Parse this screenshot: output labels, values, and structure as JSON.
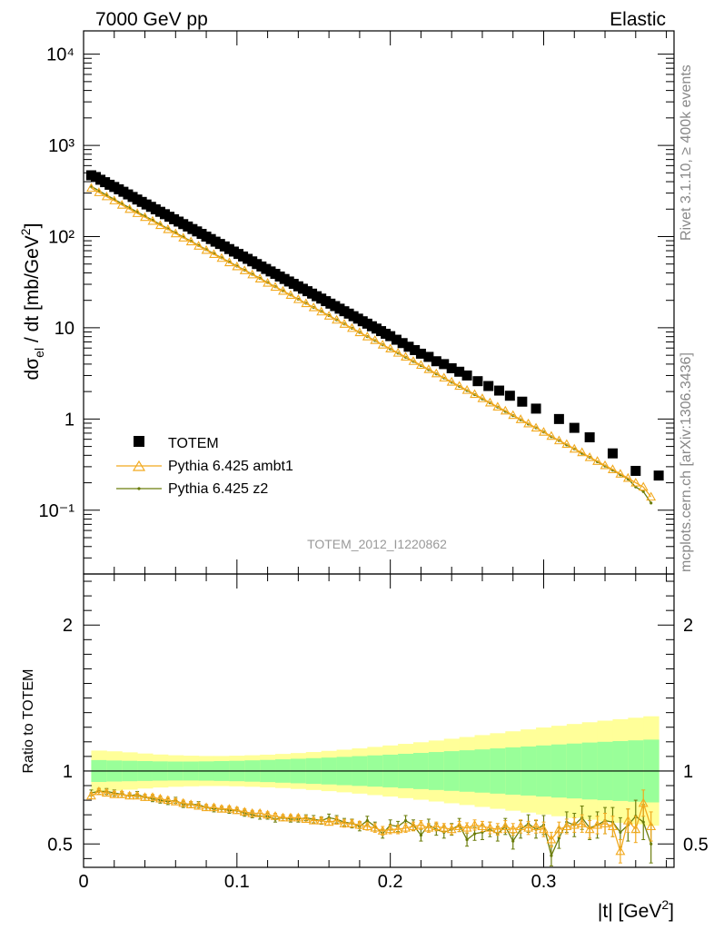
{
  "header": {
    "left": "7000 GeV pp",
    "right": "Elastic"
  },
  "side_text": {
    "rivet": "Rivet 3.1.10, ≥ 400k events",
    "mcplots": "mcplots.cern.ch [arXiv:1306.3436]"
  },
  "watermark": "TOTEM_2012_I1220862",
  "legend": {
    "placement": "lower-left",
    "entries": [
      "TOTEM",
      "Pythia 6.425 ambt1",
      "Pythia 6.425 z2"
    ]
  },
  "colors": {
    "data": "#000000",
    "ambt1": "#f2a91e",
    "z2": "#6b7d0b",
    "band_inner": "#99ff99",
    "band_outer": "#ffff99"
  },
  "chart_data": [
    {
      "type": "scatter",
      "ylabel": "dσ_el / dt [mb/GeV²]",
      "xlim": [
        0,
        0.385
      ],
      "ylim": [
        0.02,
        18000
      ],
      "yscale": "log",
      "x_ticks": [
        "0",
        "0.1",
        "0.2",
        "0.3"
      ],
      "y_ticks": [
        "10⁻¹",
        "1",
        "10",
        "10²",
        "10³",
        "10⁴"
      ],
      "x": [
        0.005,
        0.01,
        0.015,
        0.02,
        0.025,
        0.03,
        0.035,
        0.04,
        0.045,
        0.05,
        0.055,
        0.06,
        0.065,
        0.07,
        0.075,
        0.08,
        0.085,
        0.09,
        0.095,
        0.1,
        0.105,
        0.11,
        0.115,
        0.12,
        0.125,
        0.13,
        0.135,
        0.14,
        0.145,
        0.15,
        0.155,
        0.16,
        0.165,
        0.17,
        0.175,
        0.18,
        0.185,
        0.19,
        0.195,
        0.2,
        0.205,
        0.21,
        0.215,
        0.22,
        0.225,
        0.23,
        0.235,
        0.24,
        0.245,
        0.25,
        0.255,
        0.26,
        0.265,
        0.27,
        0.275,
        0.28,
        0.285,
        0.29,
        0.295,
        0.3,
        0.305,
        0.31,
        0.315,
        0.32,
        0.325,
        0.33,
        0.335,
        0.34,
        0.345,
        0.35,
        0.355,
        0.36,
        0.365,
        0.37
      ],
      "series": [
        {
          "name": "TOTEM",
          "x": [
            0.005,
            0.008,
            0.011,
            0.014,
            0.017,
            0.02,
            0.023,
            0.026,
            0.029,
            0.032,
            0.035,
            0.038,
            0.041,
            0.044,
            0.047,
            0.05,
            0.053,
            0.056,
            0.059,
            0.062,
            0.065,
            0.068,
            0.071,
            0.074,
            0.077,
            0.08,
            0.083,
            0.086,
            0.089,
            0.092,
            0.095,
            0.098,
            0.101,
            0.104,
            0.107,
            0.11,
            0.113,
            0.116,
            0.119,
            0.122,
            0.125,
            0.128,
            0.131,
            0.134,
            0.137,
            0.14,
            0.143,
            0.146,
            0.149,
            0.152,
            0.155,
            0.158,
            0.161,
            0.164,
            0.167,
            0.17,
            0.173,
            0.176,
            0.179,
            0.182,
            0.185,
            0.188,
            0.191,
            0.194,
            0.197,
            0.2,
            0.204,
            0.208,
            0.212,
            0.216,
            0.22,
            0.225,
            0.23,
            0.235,
            0.24,
            0.245,
            0.25,
            0.257,
            0.264,
            0.271,
            0.278,
            0.286,
            0.295,
            0.31,
            0.32,
            0.33,
            0.345,
            0.36,
            0.375
          ],
          "y": [
            470,
            450,
            420,
            395,
            370,
            350,
            330,
            310,
            290,
            272,
            255,
            240,
            225,
            212,
            199,
            187,
            176,
            165,
            155,
            146,
            137,
            129,
            121,
            114,
            107,
            100,
            94,
            88,
            83,
            78,
            73,
            68.5,
            64.5,
            60.5,
            57,
            53.5,
            50,
            47,
            44.2,
            41.5,
            39,
            36.5,
            34.3,
            32.2,
            30.3,
            28.5,
            26.8,
            25.2,
            23.7,
            22.2,
            20.9,
            19.6,
            18.4,
            17.3,
            16.2,
            15.2,
            14.3,
            13.4,
            12.6,
            11.8,
            11.1,
            10.4,
            9.8,
            9.2,
            8.6,
            8.1,
            7.4,
            6.8,
            6.2,
            5.7,
            5.2,
            4.8,
            4.3,
            4.0,
            3.6,
            3.3,
            3.0,
            2.6,
            2.3,
            2.05,
            1.8,
            1.55,
            1.3,
            1.0,
            0.8,
            0.63,
            0.42,
            0.27,
            0.24
          ]
        },
        {
          "name": "Pythia 6.425 ambt1",
          "y": [
            340,
            305,
            275,
            248,
            222,
            200,
            180,
            163,
            148,
            133,
            120,
            108,
            97,
            88,
            79,
            71,
            64,
            58,
            52,
            47,
            42.5,
            38.3,
            34.5,
            31,
            28,
            25.3,
            22.8,
            20.5,
            18.5,
            16.7,
            15,
            13.5,
            12.2,
            11,
            9.9,
            8.9,
            8.0,
            7.3,
            6.5,
            5.9,
            5.3,
            4.8,
            4.3,
            3.9,
            3.5,
            3.15,
            2.83,
            2.55,
            2.3,
            2.07,
            1.87,
            1.68,
            1.51,
            1.36,
            1.23,
            1.1,
            0.99,
            0.89,
            0.8,
            0.72,
            0.65,
            0.58,
            0.53,
            0.47,
            0.43,
            0.38,
            0.345,
            0.31,
            0.28,
            0.25,
            0.225,
            0.2,
            0.18,
            0.14
          ]
        },
        {
          "name": "Pythia 6.425 z2",
          "y": [
            355,
            318,
            285,
            256,
            230,
            207,
            186,
            168,
            151,
            136,
            122,
            110,
            99,
            89,
            80,
            72,
            65,
            58.5,
            52.7,
            47.5,
            42.8,
            38.6,
            34.8,
            31.3,
            28.2,
            25.4,
            22.9,
            20.6,
            18.6,
            16.7,
            15.1,
            13.6,
            12.2,
            11,
            9.9,
            8.9,
            8.0,
            7.25,
            6.5,
            5.85,
            5.27,
            4.75,
            4.28,
            3.85,
            3.47,
            3.12,
            2.81,
            2.53,
            2.28,
            2.05,
            1.85,
            1.66,
            1.5,
            1.35,
            1.21,
            1.09,
            0.98,
            0.88,
            0.8,
            0.72,
            0.64,
            0.58,
            0.52,
            0.47,
            0.42,
            0.38,
            0.34,
            0.305,
            0.275,
            0.245,
            0.22,
            0.18,
            0.16,
            0.12
          ]
        }
      ]
    },
    {
      "type": "line",
      "ylabel": "Ratio to TOTEM",
      "xlabel": "|t| [GeV²]",
      "xlim": [
        0,
        0.385
      ],
      "ylim": [
        0.34,
        2.35
      ],
      "x_ticks": [
        "0",
        "0.1",
        "0.2",
        "0.3"
      ],
      "y_ticks": [
        "0.5",
        "1",
        "2"
      ],
      "band_edges": [
        0.005,
        0.015,
        0.025,
        0.035,
        0.045,
        0.055,
        0.065,
        0.075,
        0.085,
        0.095,
        0.105,
        0.115,
        0.125,
        0.135,
        0.145,
        0.155,
        0.165,
        0.175,
        0.185,
        0.195,
        0.205,
        0.215,
        0.225,
        0.235,
        0.245,
        0.255,
        0.265,
        0.275,
        0.285,
        0.295,
        0.305,
        0.315,
        0.325,
        0.335,
        0.345,
        0.355,
        0.365,
        0.375
      ],
      "band_inner_half": [
        0.075,
        0.072,
        0.07,
        0.068,
        0.066,
        0.065,
        0.065,
        0.066,
        0.068,
        0.07,
        0.073,
        0.076,
        0.08,
        0.084,
        0.088,
        0.092,
        0.097,
        0.102,
        0.107,
        0.112,
        0.118,
        0.124,
        0.13,
        0.136,
        0.142,
        0.148,
        0.155,
        0.162,
        0.168,
        0.175,
        0.182,
        0.188,
        0.195,
        0.2,
        0.205,
        0.21,
        0.215
      ],
      "band_outer_half": [
        0.14,
        0.135,
        0.128,
        0.12,
        0.113,
        0.108,
        0.105,
        0.103,
        0.103,
        0.105,
        0.108,
        0.112,
        0.117,
        0.123,
        0.13,
        0.138,
        0.146,
        0.155,
        0.165,
        0.175,
        0.186,
        0.197,
        0.209,
        0.221,
        0.233,
        0.246,
        0.259,
        0.272,
        0.285,
        0.298,
        0.31,
        0.322,
        0.334,
        0.345,
        0.355,
        0.365,
        0.375
      ],
      "series": [
        {
          "name": "Pythia 6.425 ambt1",
          "y": [
            0.83,
            0.86,
            0.85,
            0.84,
            0.84,
            0.83,
            0.83,
            0.82,
            0.82,
            0.81,
            0.8,
            0.79,
            0.78,
            0.77,
            0.76,
            0.75,
            0.75,
            0.74,
            0.74,
            0.73,
            0.72,
            0.71,
            0.71,
            0.7,
            0.69,
            0.68,
            0.68,
            0.68,
            0.67,
            0.66,
            0.66,
            0.65,
            0.66,
            0.64,
            0.64,
            0.63,
            0.62,
            0.61,
            0.59,
            0.6,
            0.6,
            0.61,
            0.62,
            0.63,
            0.61,
            0.62,
            0.61,
            0.6,
            0.62,
            0.61,
            0.63,
            0.62,
            0.61,
            0.6,
            0.62,
            0.6,
            0.62,
            0.61,
            0.62,
            0.6,
            0.53,
            0.6,
            0.62,
            0.63,
            0.64,
            0.6,
            0.63,
            0.64,
            0.62,
            0.45,
            0.66,
            0.6,
            0.78,
            0.62
          ],
          "err": [
            0.02,
            0.02,
            0.02,
            0.02,
            0.02,
            0.02,
            0.02,
            0.02,
            0.02,
            0.02,
            0.02,
            0.02,
            0.02,
            0.02,
            0.02,
            0.02,
            0.02,
            0.02,
            0.02,
            0.02,
            0.02,
            0.02,
            0.02,
            0.02,
            0.02,
            0.02,
            0.02,
            0.02,
            0.02,
            0.02,
            0.02,
            0.02,
            0.025,
            0.025,
            0.025,
            0.025,
            0.025,
            0.03,
            0.03,
            0.03,
            0.03,
            0.03,
            0.03,
            0.03,
            0.03,
            0.03,
            0.03,
            0.035,
            0.035,
            0.035,
            0.035,
            0.035,
            0.04,
            0.04,
            0.04,
            0.04,
            0.045,
            0.045,
            0.045,
            0.05,
            0.05,
            0.05,
            0.05,
            0.05,
            0.06,
            0.06,
            0.06,
            0.07,
            0.07,
            0.08,
            0.08,
            0.09,
            0.09,
            0.1
          ]
        },
        {
          "name": "Pythia 6.425 z2",
          "y": [
            0.85,
            0.86,
            0.86,
            0.85,
            0.84,
            0.83,
            0.84,
            0.82,
            0.81,
            0.8,
            0.79,
            0.8,
            0.77,
            0.77,
            0.77,
            0.75,
            0.74,
            0.74,
            0.73,
            0.73,
            0.71,
            0.7,
            0.69,
            0.69,
            0.67,
            0.68,
            0.67,
            0.67,
            0.68,
            0.67,
            0.66,
            0.68,
            0.67,
            0.65,
            0.64,
            0.62,
            0.66,
            0.62,
            0.57,
            0.63,
            0.62,
            0.66,
            0.63,
            0.56,
            0.63,
            0.6,
            0.58,
            0.6,
            0.63,
            0.53,
            0.57,
            0.58,
            0.6,
            0.57,
            0.62,
            0.52,
            0.6,
            0.64,
            0.6,
            0.63,
            0.42,
            0.54,
            0.65,
            0.63,
            0.68,
            0.61,
            0.63,
            0.66,
            0.65,
            0.58,
            0.63,
            0.69,
            0.65,
            0.5
          ],
          "err": [
            0.02,
            0.02,
            0.02,
            0.02,
            0.02,
            0.02,
            0.02,
            0.02,
            0.02,
            0.02,
            0.02,
            0.02,
            0.02,
            0.02,
            0.02,
            0.02,
            0.02,
            0.02,
            0.02,
            0.02,
            0.02,
            0.02,
            0.02,
            0.02,
            0.02,
            0.02,
            0.02,
            0.02,
            0.02,
            0.025,
            0.025,
            0.025,
            0.025,
            0.025,
            0.03,
            0.03,
            0.03,
            0.03,
            0.03,
            0.035,
            0.035,
            0.035,
            0.035,
            0.04,
            0.04,
            0.04,
            0.04,
            0.04,
            0.045,
            0.045,
            0.045,
            0.05,
            0.05,
            0.05,
            0.055,
            0.055,
            0.06,
            0.06,
            0.06,
            0.065,
            0.07,
            0.07,
            0.07,
            0.08,
            0.08,
            0.08,
            0.09,
            0.09,
            0.1,
            0.1,
            0.11,
            0.11,
            0.12,
            0.13
          ]
        }
      ]
    }
  ]
}
